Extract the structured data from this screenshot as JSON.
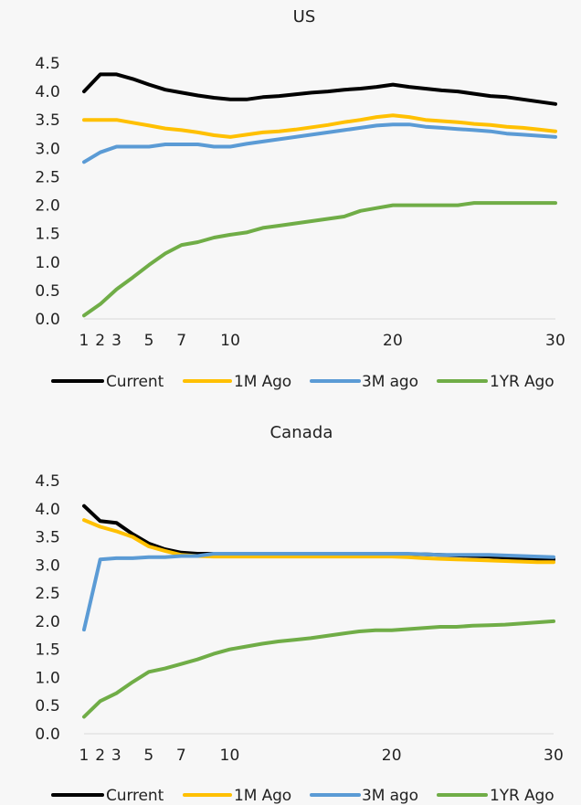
{
  "chart_data": [
    {
      "type": "line",
      "title": "US",
      "xlabel": "",
      "ylabel": "",
      "xlim": [
        1,
        30
      ],
      "ylim": [
        0,
        4.5
      ],
      "x_ticks": [
        1,
        2,
        3,
        5,
        7,
        10,
        20,
        30
      ],
      "x_tick_labels": [
        "1",
        "2",
        "3",
        "5",
        "7",
        "10",
        "20",
        "30"
      ],
      "y_ticks": [
        0.0,
        0.5,
        1.0,
        1.5,
        2.0,
        2.5,
        3.0,
        3.5,
        4.0,
        4.5
      ],
      "y_tick_labels": [
        "0.0",
        "0.5",
        "1.0",
        "1.5",
        "2.0",
        "2.5",
        "3.0",
        "3.5",
        "4.0",
        "4.5"
      ],
      "legend_position": "bottom",
      "grid": false,
      "x": [
        1,
        2,
        3,
        4,
        5,
        6,
        7,
        8,
        9,
        10,
        11,
        12,
        13,
        14,
        15,
        16,
        17,
        18,
        19,
        20,
        21,
        22,
        23,
        24,
        25,
        26,
        27,
        28,
        29,
        30
      ],
      "series": [
        {
          "name": "Current",
          "color": "#000000",
          "values": [
            4.0,
            4.3,
            4.3,
            4.22,
            4.12,
            4.03,
            3.98,
            3.93,
            3.89,
            3.86,
            3.86,
            3.9,
            3.92,
            3.95,
            3.98,
            4.0,
            4.03,
            4.05,
            4.08,
            4.12,
            4.08,
            4.05,
            4.02,
            4.0,
            3.96,
            3.92,
            3.9,
            3.86,
            3.82,
            3.78
          ]
        },
        {
          "name": "1M Ago",
          "color": "#FFC000",
          "values": [
            3.5,
            3.5,
            3.5,
            3.45,
            3.4,
            3.35,
            3.32,
            3.28,
            3.23,
            3.2,
            3.24,
            3.28,
            3.3,
            3.33,
            3.37,
            3.41,
            3.46,
            3.5,
            3.55,
            3.58,
            3.55,
            3.5,
            3.48,
            3.46,
            3.43,
            3.41,
            3.38,
            3.36,
            3.33,
            3.3
          ]
        },
        {
          "name": "3M ago",
          "color": "#5B9BD5",
          "values": [
            2.76,
            2.93,
            3.03,
            3.03,
            3.03,
            3.07,
            3.07,
            3.07,
            3.03,
            3.03,
            3.08,
            3.12,
            3.16,
            3.2,
            3.24,
            3.28,
            3.32,
            3.36,
            3.4,
            3.42,
            3.42,
            3.38,
            3.36,
            3.34,
            3.32,
            3.3,
            3.26,
            3.24,
            3.22,
            3.2
          ]
        },
        {
          "name": "1YR Ago",
          "color": "#70AD47",
          "values": [
            0.06,
            0.26,
            0.52,
            0.73,
            0.95,
            1.15,
            1.3,
            1.35,
            1.43,
            1.48,
            1.52,
            1.6,
            1.64,
            1.68,
            1.72,
            1.76,
            1.8,
            1.9,
            1.95,
            2.0,
            2.0,
            2.0,
            2.0,
            2.0,
            2.04,
            2.04,
            2.04,
            2.04,
            2.04,
            2.04
          ]
        }
      ]
    },
    {
      "type": "line",
      "title": "Canada",
      "xlabel": "",
      "ylabel": "",
      "xlim": [
        1,
        30
      ],
      "ylim": [
        0,
        4.5
      ],
      "x_ticks": [
        1,
        2,
        3,
        5,
        7,
        10,
        20,
        30
      ],
      "x_tick_labels": [
        "1",
        "2",
        "3",
        "5",
        "7",
        "10",
        "20",
        "30"
      ],
      "y_ticks": [
        0.0,
        0.5,
        1.0,
        1.5,
        2.0,
        2.5,
        3.0,
        3.5,
        4.0,
        4.5
      ],
      "y_tick_labels": [
        "0.0",
        "0.5",
        "1.0",
        "1.5",
        "2.0",
        "2.5",
        "3.0",
        "3.5",
        "4.0",
        "4.5"
      ],
      "legend_position": "bottom",
      "grid": false,
      "x": [
        1,
        2,
        3,
        4,
        5,
        6,
        7,
        8,
        9,
        10,
        11,
        12,
        13,
        14,
        15,
        16,
        17,
        18,
        19,
        20,
        21,
        22,
        23,
        24,
        25,
        26,
        27,
        28,
        29,
        30
      ],
      "series": [
        {
          "name": "Current",
          "color": "#000000",
          "values": [
            4.05,
            3.78,
            3.75,
            3.55,
            3.38,
            3.28,
            3.22,
            3.2,
            3.2,
            3.19,
            3.19,
            3.19,
            3.19,
            3.19,
            3.19,
            3.19,
            3.19,
            3.19,
            3.19,
            3.19,
            3.19,
            3.19,
            3.18,
            3.17,
            3.16,
            3.15,
            3.13,
            3.12,
            3.11,
            3.1
          ]
        },
        {
          "name": "1M Ago",
          "color": "#FFC000",
          "values": [
            3.8,
            3.68,
            3.6,
            3.5,
            3.33,
            3.25,
            3.18,
            3.16,
            3.15,
            3.15,
            3.15,
            3.15,
            3.15,
            3.15,
            3.15,
            3.15,
            3.15,
            3.15,
            3.15,
            3.15,
            3.14,
            3.12,
            3.11,
            3.1,
            3.09,
            3.08,
            3.07,
            3.06,
            3.05,
            3.05
          ]
        },
        {
          "name": "3M ago",
          "color": "#5B9BD5",
          "values": [
            1.85,
            3.1,
            3.12,
            3.12,
            3.14,
            3.14,
            3.16,
            3.16,
            3.2,
            3.2,
            3.2,
            3.2,
            3.2,
            3.2,
            3.2,
            3.2,
            3.2,
            3.2,
            3.2,
            3.2,
            3.2,
            3.19,
            3.18,
            3.18,
            3.18,
            3.18,
            3.17,
            3.16,
            3.15,
            3.14
          ]
        },
        {
          "name": "1YR Ago",
          "color": "#70AD47",
          "values": [
            0.3,
            0.58,
            0.72,
            0.92,
            1.1,
            1.16,
            1.24,
            1.32,
            1.42,
            1.5,
            1.55,
            1.6,
            1.64,
            1.67,
            1.7,
            1.74,
            1.78,
            1.82,
            1.84,
            1.84,
            1.86,
            1.88,
            1.9,
            1.9,
            1.92,
            1.93,
            1.94,
            1.96,
            1.98,
            2.0
          ]
        }
      ]
    }
  ]
}
